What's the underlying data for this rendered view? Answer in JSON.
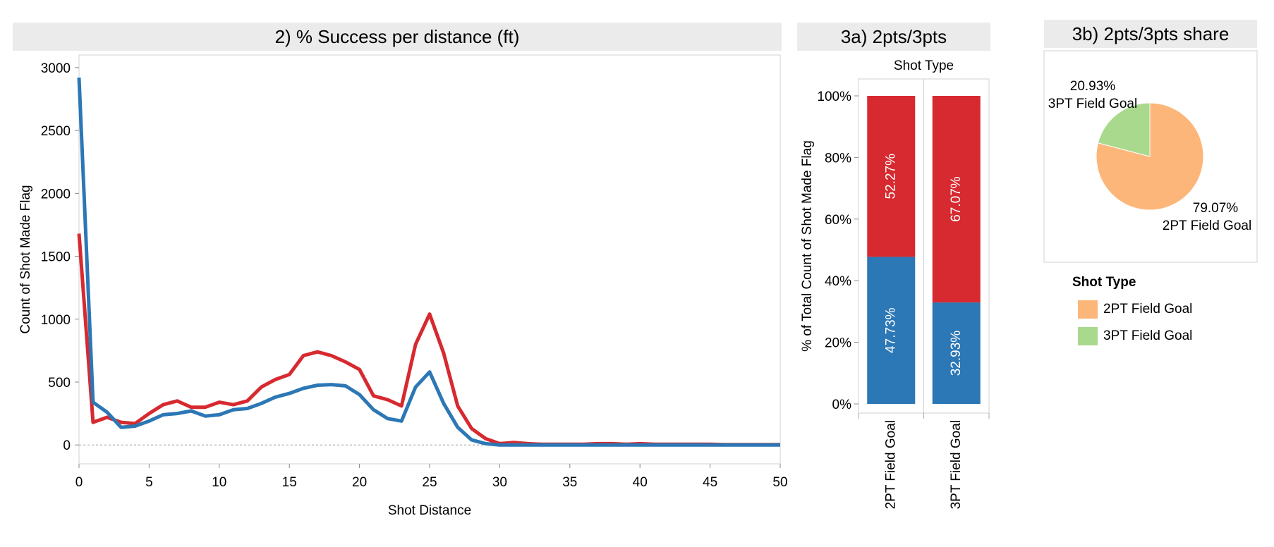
{
  "colors": {
    "made": "#2c77b5",
    "missed": "#d62a30",
    "share_2pt": "#fdb679",
    "share_3pt": "#a8d98c"
  },
  "chart_data": [
    {
      "id": "line",
      "type": "line",
      "title": "2) % Success per distance (ft)",
      "xlabel": "Shot Distance",
      "ylabel": "Count of Shot Made Flag",
      "xlim": [
        0,
        50
      ],
      "ylim": [
        -150,
        3100
      ],
      "x_ticks": [
        "0",
        "5",
        "10",
        "15",
        "20",
        "25",
        "30",
        "35",
        "40",
        "45",
        "50"
      ],
      "y_ticks": [
        "0",
        "500",
        "1000",
        "1500",
        "2000",
        "2500",
        "3000"
      ],
      "x": [
        0,
        1,
        2,
        3,
        4,
        5,
        6,
        7,
        8,
        9,
        10,
        11,
        12,
        13,
        14,
        15,
        16,
        17,
        18,
        19,
        20,
        21,
        22,
        23,
        24,
        25,
        26,
        27,
        28,
        29,
        30,
        31,
        32,
        33,
        34,
        35,
        36,
        37,
        38,
        39,
        40,
        41,
        42,
        43,
        44,
        45,
        46,
        47,
        48,
        49,
        50
      ],
      "series": [
        {
          "key": "made",
          "values": [
            2920,
            340,
            260,
            140,
            150,
            190,
            240,
            250,
            270,
            230,
            240,
            280,
            290,
            330,
            380,
            410,
            450,
            475,
            480,
            470,
            400,
            280,
            210,
            190,
            460,
            580,
            330,
            140,
            40,
            10,
            0,
            0,
            0,
            0,
            0,
            0,
            0,
            0,
            0,
            0,
            0,
            0,
            0,
            0,
            0,
            0,
            0,
            0,
            0,
            0,
            0
          ]
        },
        {
          "key": "missed",
          "values": [
            1680,
            180,
            220,
            180,
            170,
            250,
            320,
            350,
            300,
            300,
            340,
            320,
            350,
            460,
            520,
            560,
            710,
            740,
            710,
            660,
            600,
            390,
            360,
            310,
            800,
            1040,
            730,
            310,
            130,
            50,
            10,
            20,
            10,
            5,
            5,
            5,
            5,
            10,
            10,
            5,
            10,
            5,
            5,
            5,
            5,
            5,
            3,
            3,
            3,
            3,
            3
          ]
        }
      ]
    },
    {
      "id": "stacked",
      "type": "bar",
      "title": "3a) 2pts/3pts",
      "column_header": "Shot Type",
      "ylabel": "% of Total Count of Shot Made Flag",
      "ylim": [
        0,
        100
      ],
      "y_ticks": [
        "0%",
        "20%",
        "40%",
        "60%",
        "80%",
        "100%"
      ],
      "categories": [
        "2PT Field Goal",
        "3PT Field Goal"
      ],
      "series": [
        {
          "key": "made",
          "values": [
            47.73,
            32.93
          ],
          "labels": [
            "47.73%",
            "32.93%"
          ]
        },
        {
          "key": "missed",
          "values": [
            52.27,
            67.07
          ],
          "labels": [
            "52.27%",
            "67.07%"
          ]
        }
      ]
    },
    {
      "id": "pie",
      "type": "pie",
      "title": "3b) 2pts/3pts share",
      "slices": [
        {
          "name": "2PT Field Goal",
          "value": 79.07,
          "pct": "79.07%",
          "color_key": "share_2pt"
        },
        {
          "name": "3PT Field Goal",
          "value": 20.93,
          "pct": "20.93%",
          "color_key": "share_3pt"
        }
      ],
      "legend": {
        "title": "Shot Type",
        "items": [
          "2PT Field Goal",
          "3PT Field Goal"
        ]
      }
    }
  ]
}
